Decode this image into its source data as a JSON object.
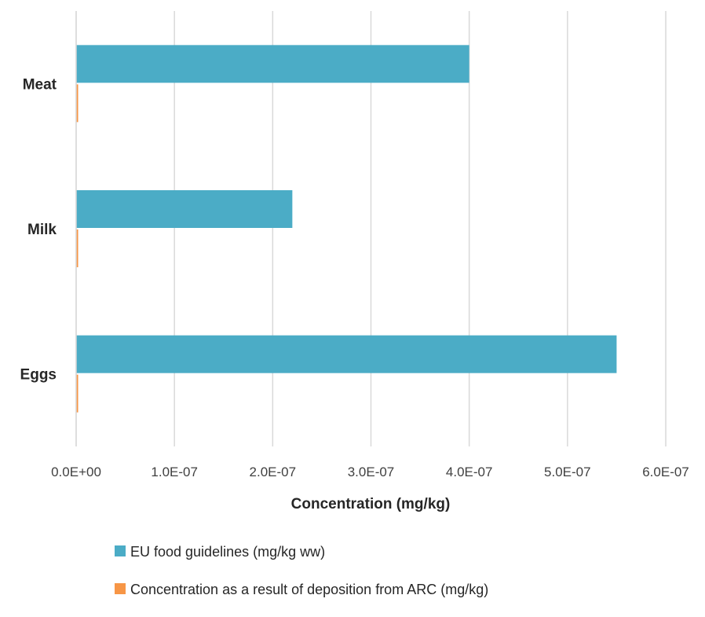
{
  "chart_data": {
    "type": "bar",
    "orientation": "horizontal",
    "title": "",
    "xlabel": "Concentration (mg/kg)",
    "ylabel": "",
    "categories": [
      "Meat",
      "Milk",
      "Eggs"
    ],
    "series": [
      {
        "name": "EU food guidelines (mg/kg ww)",
        "color": "#4bacc6",
        "values": [
          4e-07,
          2.2e-07,
          5.5e-07
        ]
      },
      {
        "name": "Concentration as a result of deposition from ARC (mg/kg)",
        "color": "#f79646",
        "values": [
          2e-09,
          2e-09,
          2e-09
        ]
      }
    ],
    "xlim": [
      0,
      6e-07
    ],
    "xticks": [
      0,
      1e-07,
      2e-07,
      3e-07,
      4e-07,
      5e-07,
      6e-07
    ],
    "xtick_labels": [
      "0.0E+00",
      "1.0E-07",
      "2.0E-07",
      "3.0E-07",
      "4.0E-07",
      "5.0E-07",
      "6.0E-07"
    ],
    "grid": true,
    "legend_position": "bottom"
  }
}
